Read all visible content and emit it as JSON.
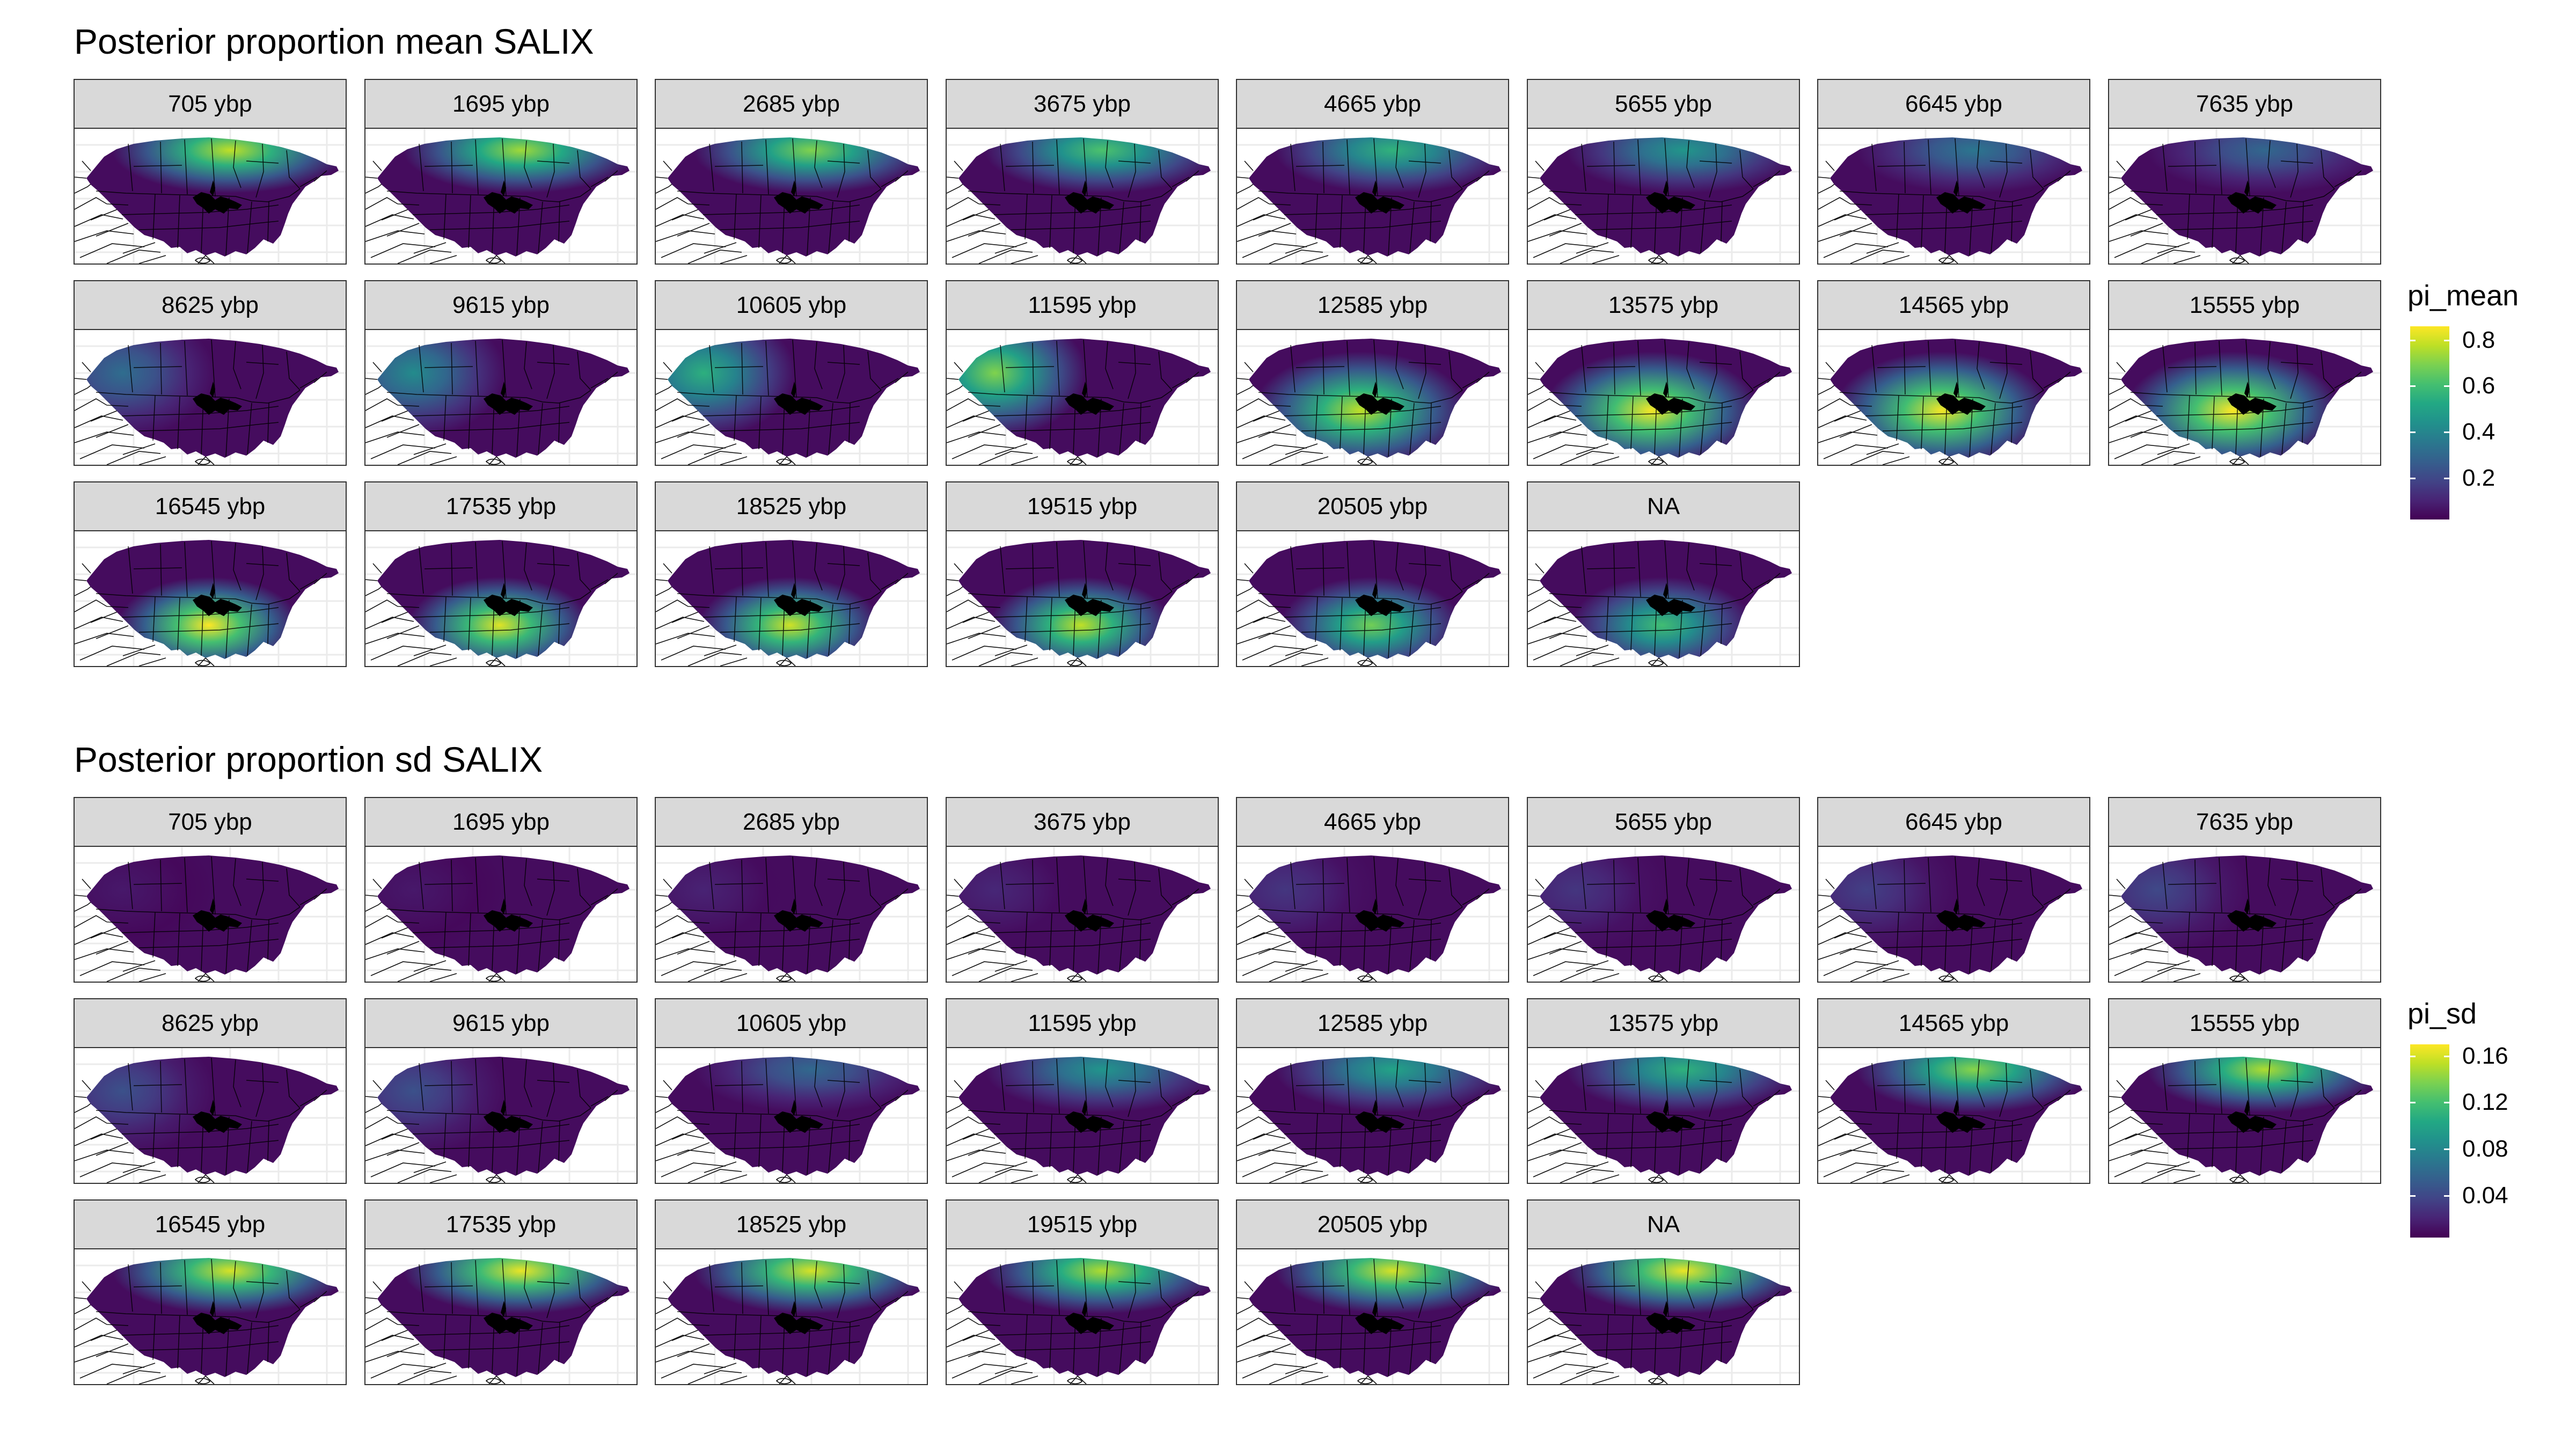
{
  "figures": [
    {
      "title": "Posterior proportion mean SALIX",
      "variable": "pi_mean",
      "legend": {
        "title": "pi_mean",
        "ticks": [
          "0.8",
          "0.6",
          "0.4",
          "0.2"
        ],
        "tick_values": [
          0.8,
          0.6,
          0.4,
          0.2
        ],
        "range": [
          0.02,
          0.86
        ]
      },
      "panels": [
        {
          "label": "705 ybp",
          "pattern": "north",
          "value": 0.78
        },
        {
          "label": "1695 ybp",
          "pattern": "north",
          "value": 0.74
        },
        {
          "label": "2685 ybp",
          "pattern": "north",
          "value": 0.7
        },
        {
          "label": "3675 ybp",
          "pattern": "north",
          "value": 0.62
        },
        {
          "label": "4665 ybp",
          "pattern": "north",
          "value": 0.56
        },
        {
          "label": "5655 ybp",
          "pattern": "north",
          "value": 0.46
        },
        {
          "label": "6645 ybp",
          "pattern": "north",
          "value": 0.35
        },
        {
          "label": "7635 ybp",
          "pattern": "north",
          "value": 0.3
        },
        {
          "label": "8625 ybp",
          "pattern": "west",
          "value": 0.32
        },
        {
          "label": "9615 ybp",
          "pattern": "west",
          "value": 0.42
        },
        {
          "label": "10605 ybp",
          "pattern": "west",
          "value": 0.55
        },
        {
          "label": "11595 ybp",
          "pattern": "west",
          "value": 0.7
        },
        {
          "label": "12585 ybp",
          "pattern": "central",
          "value": 0.78
        },
        {
          "label": "13575 ybp",
          "pattern": "central",
          "value": 0.85
        },
        {
          "label": "14565 ybp",
          "pattern": "central",
          "value": 0.85
        },
        {
          "label": "15555 ybp",
          "pattern": "central",
          "value": 0.86
        },
        {
          "label": "16545 ybp",
          "pattern": "south",
          "value": 0.86
        },
        {
          "label": "17535 ybp",
          "pattern": "south",
          "value": 0.82
        },
        {
          "label": "18525 ybp",
          "pattern": "south",
          "value": 0.8
        },
        {
          "label": "19515 ybp",
          "pattern": "south",
          "value": 0.78
        },
        {
          "label": "20505 ybp",
          "pattern": "south",
          "value": 0.68
        },
        {
          "label": "NA",
          "pattern": "south",
          "value": 0.6
        }
      ]
    },
    {
      "title": "Posterior proportion sd SALIX",
      "variable": "pi_sd",
      "legend": {
        "title": "pi_sd",
        "ticks": [
          "0.16",
          "0.12",
          "0.08",
          "0.04"
        ],
        "tick_values": [
          0.16,
          0.12,
          0.08,
          0.04
        ],
        "range": [
          0.004,
          0.17
        ]
      },
      "panels": [
        {
          "label": "705 ybp",
          "pattern": "west",
          "value": 0.015
        },
        {
          "label": "1695 ybp",
          "pattern": "west",
          "value": 0.015
        },
        {
          "label": "2685 ybp",
          "pattern": "west",
          "value": 0.02
        },
        {
          "label": "3675 ybp",
          "pattern": "west",
          "value": 0.022
        },
        {
          "label": "4665 ybp",
          "pattern": "west",
          "value": 0.03
        },
        {
          "label": "5655 ybp",
          "pattern": "west",
          "value": 0.03
        },
        {
          "label": "6645 ybp",
          "pattern": "west",
          "value": 0.035
        },
        {
          "label": "7635 ybp",
          "pattern": "west",
          "value": 0.04
        },
        {
          "label": "8625 ybp",
          "pattern": "west",
          "value": 0.045
        },
        {
          "label": "9615 ybp",
          "pattern": "west",
          "value": 0.045
        },
        {
          "label": "10605 ybp",
          "pattern": "north",
          "value": 0.06
        },
        {
          "label": "11595 ybp",
          "pattern": "north",
          "value": 0.09
        },
        {
          "label": "12585 ybp",
          "pattern": "north",
          "value": 0.1
        },
        {
          "label": "13575 ybp",
          "pattern": "north",
          "value": 0.11
        },
        {
          "label": "14565 ybp",
          "pattern": "north",
          "value": 0.14
        },
        {
          "label": "15555 ybp",
          "pattern": "north",
          "value": 0.15
        },
        {
          "label": "16545 ybp",
          "pattern": "north",
          "value": 0.16
        },
        {
          "label": "17535 ybp",
          "pattern": "north",
          "value": 0.165
        },
        {
          "label": "18525 ybp",
          "pattern": "north",
          "value": 0.16
        },
        {
          "label": "19515 ybp",
          "pattern": "north",
          "value": 0.15
        },
        {
          "label": "20505 ybp",
          "pattern": "north",
          "value": 0.16
        },
        {
          "label": "NA",
          "pattern": "north",
          "value": 0.165
        }
      ]
    }
  ],
  "chart_data": [
    {
      "type": "heatmap",
      "title": "Posterior proportion mean SALIX",
      "facets": [
        "705 ybp",
        "1695 ybp",
        "2685 ybp",
        "3675 ybp",
        "4665 ybp",
        "5655 ybp",
        "6645 ybp",
        "7635 ybp",
        "8625 ybp",
        "9615 ybp",
        "10605 ybp",
        "11595 ybp",
        "12585 ybp",
        "13575 ybp",
        "14565 ybp",
        "15555 ybp",
        "16545 ybp",
        "17535 ybp",
        "18525 ybp",
        "19515 ybp",
        "20505 ybp",
        "NA"
      ],
      "fill": "pi_mean",
      "color_scale": "viridis",
      "legend_ticks": [
        0.2,
        0.4,
        0.6,
        0.8
      ],
      "legend_position": "right",
      "max_value_per_facet": [
        0.78,
        0.74,
        0.7,
        0.62,
        0.56,
        0.46,
        0.35,
        0.3,
        0.32,
        0.42,
        0.55,
        0.7,
        0.78,
        0.85,
        0.85,
        0.86,
        0.86,
        0.82,
        0.8,
        0.78,
        0.68,
        0.6
      ]
    },
    {
      "type": "heatmap",
      "title": "Posterior proportion sd SALIX",
      "facets": [
        "705 ybp",
        "1695 ybp",
        "2685 ybp",
        "3675 ybp",
        "4665 ybp",
        "5655 ybp",
        "6645 ybp",
        "7635 ybp",
        "8625 ybp",
        "9615 ybp",
        "10605 ybp",
        "11595 ybp",
        "12585 ybp",
        "13575 ybp",
        "14565 ybp",
        "15555 ybp",
        "16545 ybp",
        "17535 ybp",
        "18525 ybp",
        "19515 ybp",
        "20505 ybp",
        "NA"
      ],
      "fill": "pi_sd",
      "color_scale": "viridis",
      "legend_ticks": [
        0.04,
        0.08,
        0.12,
        0.16
      ],
      "legend_position": "right",
      "max_value_per_facet": [
        0.015,
        0.015,
        0.02,
        0.022,
        0.03,
        0.03,
        0.035,
        0.04,
        0.045,
        0.045,
        0.06,
        0.09,
        0.1,
        0.11,
        0.14,
        0.15,
        0.16,
        0.165,
        0.16,
        0.15,
        0.16,
        0.165
      ]
    }
  ]
}
